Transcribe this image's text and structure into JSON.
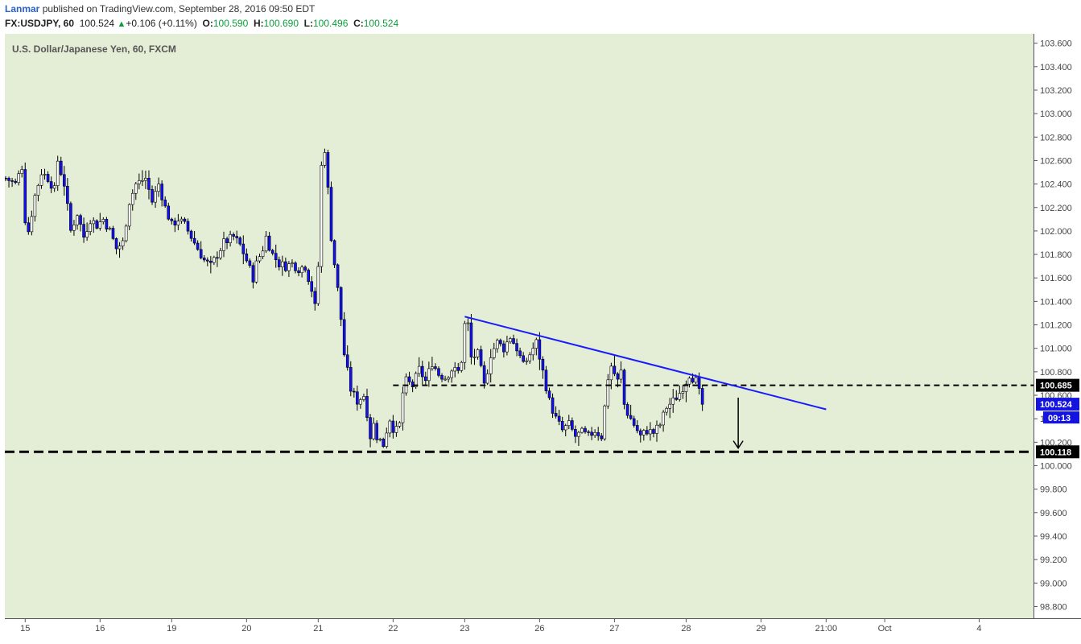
{
  "header": {
    "author": "Lanmar",
    "published_text": "published on TradingView.com, September 28, 2016 09:50 EDT",
    "symbol": "FX:USDJPY, 60",
    "last": "100.524",
    "change": "+0.106 (+0.11%)",
    "open_label": "O:",
    "open": "100.590",
    "high_label": "H:",
    "high": "100.690",
    "low_label": "L:",
    "low": "100.496",
    "close_label": "C:",
    "close": "100.524"
  },
  "chart_data": {
    "type": "candlestick",
    "title": "U.S. Dollar/Japanese Yen, 60, FXCM",
    "ylim": [
      98.7,
      103.68
    ],
    "y_ticks": [
      "98.800",
      "99.000",
      "99.200",
      "99.400",
      "99.600",
      "99.800",
      "100.000",
      "100.200",
      "100.400",
      "100.600",
      "100.800",
      "101.000",
      "101.200",
      "101.400",
      "101.600",
      "101.800",
      "102.000",
      "102.200",
      "102.400",
      "102.600",
      "102.800",
      "103.000",
      "103.200",
      "103.400",
      "103.600"
    ],
    "x_ticks": [
      {
        "label": "15",
        "i": 6
      },
      {
        "label": "16",
        "i": 29
      },
      {
        "label": "19",
        "i": 51
      },
      {
        "label": "20",
        "i": 74
      },
      {
        "label": "21",
        "i": 96
      },
      {
        "label": "22",
        "i": 119
      },
      {
        "label": "23",
        "i": 141
      },
      {
        "label": "26",
        "i": 164
      },
      {
        "label": "27",
        "i": 187
      },
      {
        "label": "28",
        "i": 209
      },
      {
        "label": "29",
        "i": 232
      },
      {
        "label": "21:00",
        "i": 252
      },
      {
        "label": "Oct",
        "i": 270
      },
      {
        "label": "4",
        "i": 299
      }
    ],
    "keypoints": [
      [
        0,
        102.45
      ],
      [
        3,
        102.4
      ],
      [
        5,
        102.55
      ],
      [
        6,
        102.1
      ],
      [
        7,
        102.0
      ],
      [
        9,
        102.3
      ],
      [
        11,
        102.5
      ],
      [
        13,
        102.45
      ],
      [
        15,
        102.35
      ],
      [
        16,
        102.6
      ],
      [
        18,
        102.4
      ],
      [
        20,
        102.0
      ],
      [
        22,
        102.15
      ],
      [
        24,
        101.95
      ],
      [
        26,
        102.1
      ],
      [
        28,
        102.05
      ],
      [
        30,
        102.1
      ],
      [
        32,
        102.0
      ],
      [
        34,
        101.85
      ],
      [
        36,
        101.9
      ],
      [
        38,
        102.25
      ],
      [
        40,
        102.4
      ],
      [
        43,
        102.45
      ],
      [
        45,
        102.25
      ],
      [
        47,
        102.4
      ],
      [
        49,
        102.2
      ],
      [
        51,
        102.05
      ],
      [
        53,
        102.1
      ],
      [
        55,
        102.05
      ],
      [
        57,
        101.95
      ],
      [
        59,
        101.85
      ],
      [
        61,
        101.75
      ],
      [
        63,
        101.7
      ],
      [
        65,
        101.8
      ],
      [
        67,
        101.9
      ],
      [
        70,
        101.95
      ],
      [
        72,
        101.88
      ],
      [
        74,
        101.75
      ],
      [
        76,
        101.6
      ],
      [
        77,
        101.72
      ],
      [
        79,
        101.85
      ],
      [
        80,
        101.95
      ],
      [
        82,
        101.8
      ],
      [
        84,
        101.72
      ],
      [
        86,
        101.7
      ],
      [
        88,
        101.72
      ],
      [
        90,
        101.68
      ],
      [
        92,
        101.7
      ],
      [
        94,
        101.5
      ],
      [
        95,
        101.35
      ],
      [
        96,
        101.7
      ],
      [
        97,
        102.55
      ],
      [
        98,
        102.7
      ],
      [
        99,
        102.35
      ],
      [
        100,
        101.95
      ],
      [
        101,
        101.72
      ],
      [
        102,
        101.5
      ],
      [
        103,
        101.25
      ],
      [
        104,
        100.95
      ],
      [
        105,
        100.8
      ],
      [
        106,
        100.65
      ],
      [
        108,
        100.55
      ],
      [
        110,
        100.6
      ],
      [
        111,
        100.45
      ],
      [
        112,
        100.25
      ],
      [
        113,
        100.35
      ],
      [
        114,
        100.25
      ],
      [
        116,
        100.18
      ],
      [
        117,
        100.3
      ],
      [
        118,
        100.4
      ],
      [
        119,
        100.32
      ],
      [
        120,
        100.3
      ],
      [
        121,
        100.35
      ],
      [
        122,
        100.62
      ],
      [
        123,
        100.72
      ],
      [
        125,
        100.68
      ],
      [
        127,
        100.82
      ],
      [
        129,
        100.72
      ],
      [
        131,
        100.88
      ],
      [
        133,
        100.78
      ],
      [
        135,
        100.75
      ],
      [
        137,
        100.82
      ],
      [
        139,
        100.8
      ],
      [
        140,
        100.9
      ],
      [
        141,
        101.2
      ],
      [
        142,
        101.2
      ],
      [
        143,
        100.92
      ],
      [
        145,
        100.95
      ],
      [
        147,
        100.68
      ],
      [
        149,
        100.95
      ],
      [
        151,
        101.05
      ],
      [
        153,
        101.0
      ],
      [
        155,
        101.1
      ],
      [
        157,
        101.0
      ],
      [
        159,
        100.85
      ],
      [
        161,
        100.95
      ],
      [
        163,
        101.05
      ],
      [
        165,
        100.8
      ],
      [
        167,
        100.55
      ],
      [
        169,
        100.4
      ],
      [
        171,
        100.3
      ],
      [
        173,
        100.35
      ],
      [
        175,
        100.25
      ],
      [
        177,
        100.28
      ],
      [
        179,
        100.25
      ],
      [
        181,
        100.3
      ],
      [
        183,
        100.25
      ],
      [
        184,
        100.5
      ],
      [
        185,
        100.75
      ],
      [
        186,
        100.85
      ],
      [
        188,
        100.72
      ],
      [
        189,
        100.8
      ],
      [
        190,
        100.52
      ],
      [
        191,
        100.45
      ],
      [
        193,
        100.35
      ],
      [
        195,
        100.25
      ],
      [
        197,
        100.3
      ],
      [
        199,
        100.28
      ],
      [
        201,
        100.35
      ],
      [
        203,
        100.5
      ],
      [
        205,
        100.55
      ],
      [
        207,
        100.62
      ],
      [
        209,
        100.72
      ],
      [
        210,
        100.78
      ],
      [
        212,
        100.72
      ],
      [
        214,
        100.52
      ]
    ],
    "support_line": {
      "price": 100.118,
      "label": "100.118"
    },
    "resistance_line": {
      "price": 100.685,
      "label": "100.685"
    },
    "trendline": {
      "start": [
        141,
        101.27
      ],
      "end": [
        252,
        100.48
      ]
    },
    "arrow": {
      "i": 225,
      "from": 100.58,
      "to": 100.15
    },
    "last_price_label": "100.524",
    "countdown_label": "09:13"
  }
}
